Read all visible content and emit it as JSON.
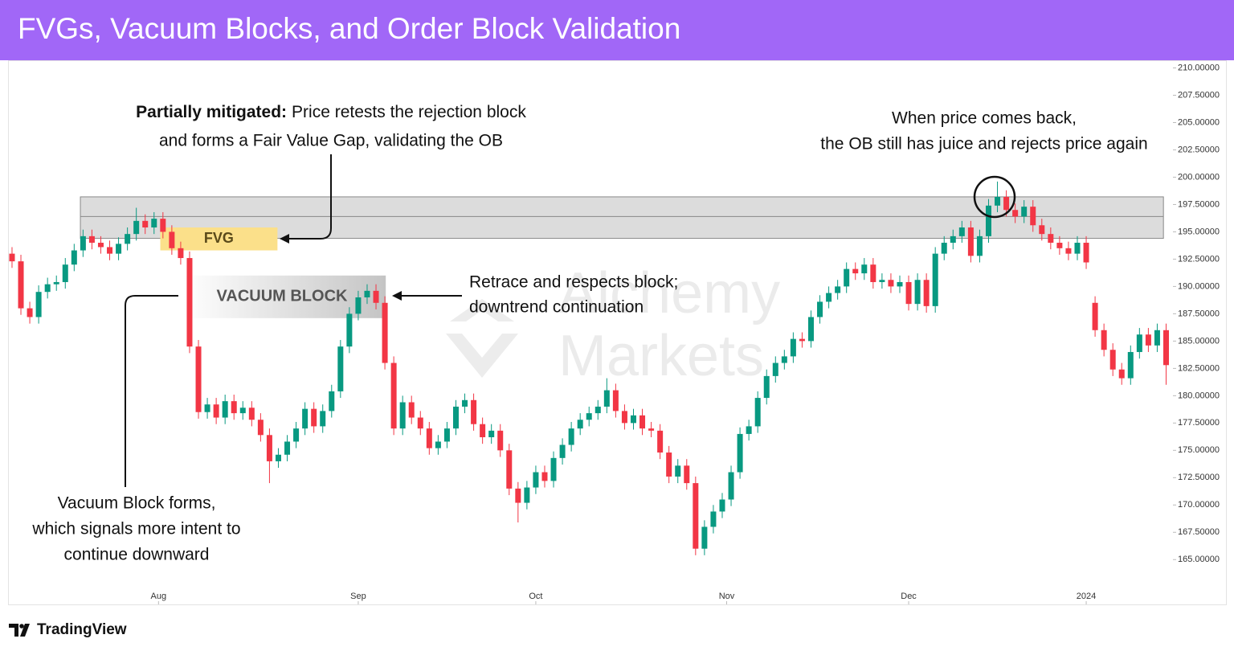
{
  "header": {
    "title": "FVGs, Vacuum Blocks, and Order Block Validation"
  },
  "chart_data": {
    "type": "candlestick",
    "open": [
      193.0,
      192.3,
      188.0,
      187.2,
      189.5,
      190.2,
      190.4,
      192.0,
      193.3,
      194.6,
      194.0,
      193.6,
      193.0,
      193.9,
      194.8,
      196.0,
      195.4,
      196.2,
      195.0,
      193.5,
      192.6,
      184.5,
      178.5,
      179.2,
      178.0,
      179.5,
      178.4,
      178.9,
      177.8,
      176.4,
      174.0,
      174.6,
      175.8,
      177.0,
      178.8,
      177.2,
      178.6,
      180.4,
      184.5,
      187.5,
      189.0,
      189.6,
      188.5,
      183.0,
      177.0,
      179.4,
      178.0,
      177.0,
      175.2,
      175.8,
      177.0,
      179.0,
      179.6,
      177.4,
      176.2,
      176.8,
      175.0,
      171.5,
      170.2,
      171.6,
      173.0,
      172.2,
      174.3,
      175.5,
      177.0,
      177.8,
      178.4,
      179.0,
      180.5,
      178.6,
      177.5,
      178.2,
      177.0,
      176.8,
      174.8,
      172.6,
      173.6,
      172.0,
      166.0,
      168.0,
      169.4,
      170.5,
      173.0,
      176.5,
      177.2,
      179.8,
      181.8,
      183.0,
      183.6,
      185.2,
      185.0,
      187.2,
      188.6,
      189.4,
      190.0,
      191.6,
      191.2,
      192.0,
      190.4,
      190.6,
      190.0,
      190.4,
      188.4,
      190.6,
      188.2,
      193.0,
      194.0,
      194.6,
      195.4,
      192.8,
      194.6,
      197.4,
      198.2,
      197.0,
      196.4,
      197.3,
      195.6,
      194.8,
      194.0,
      193.5,
      193.0,
      194.0,
      188.5,
      186.0,
      184.2,
      182.4,
      181.6,
      184.0,
      185.6,
      184.6,
      186.0
    ],
    "high": [
      193.6,
      192.9,
      188.6,
      190.1,
      190.8,
      191.0,
      192.6,
      193.9,
      195.2,
      195.2,
      194.6,
      194.2,
      194.5,
      195.4,
      197.2,
      196.6,
      196.8,
      196.8,
      195.6,
      194.1,
      193.2,
      185.1,
      179.8,
      179.8,
      180.1,
      180.1,
      179.5,
      179.5,
      178.4,
      177.0,
      175.2,
      176.4,
      177.6,
      179.4,
      179.4,
      179.2,
      181.0,
      185.1,
      188.1,
      189.6,
      190.2,
      190.2,
      189.1,
      183.6,
      180.0,
      180.0,
      178.6,
      177.6,
      176.4,
      177.6,
      179.6,
      180.2,
      180.2,
      178.0,
      177.4,
      177.4,
      175.6,
      172.1,
      172.2,
      173.6,
      173.6,
      174.9,
      176.1,
      177.6,
      178.4,
      179.0,
      179.6,
      181.6,
      181.1,
      179.2,
      178.8,
      178.8,
      177.6,
      177.4,
      175.4,
      174.2,
      174.2,
      172.6,
      168.6,
      170.0,
      171.1,
      173.6,
      177.1,
      177.8,
      180.4,
      182.4,
      183.6,
      184.2,
      185.8,
      185.8,
      187.8,
      189.2,
      190.0,
      190.6,
      192.2,
      192.2,
      192.6,
      192.6,
      191.2,
      191.2,
      191.0,
      191.0,
      191.2,
      191.2,
      193.6,
      194.6,
      195.2,
      196.0,
      196.0,
      195.2,
      198.0,
      199.6,
      198.8,
      197.6,
      197.9,
      197.9,
      196.2,
      195.4,
      194.6,
      194.1,
      194.6,
      194.6,
      189.1,
      186.6,
      184.8,
      183.0,
      184.6,
      186.2,
      186.2,
      186.6,
      186.6
    ],
    "low": [
      191.7,
      187.4,
      186.6,
      186.6,
      188.9,
      189.6,
      189.8,
      191.4,
      192.7,
      193.4,
      193.0,
      192.4,
      192.4,
      193.3,
      194.2,
      194.8,
      194.8,
      194.4,
      192.9,
      192.0,
      183.9,
      177.9,
      177.9,
      177.4,
      177.4,
      177.8,
      177.8,
      177.2,
      175.8,
      172.0,
      173.4,
      174.0,
      175.2,
      176.4,
      176.6,
      176.6,
      178.0,
      179.8,
      183.9,
      186.9,
      188.4,
      187.9,
      182.4,
      176.4,
      176.4,
      177.4,
      176.4,
      174.6,
      174.6,
      175.2,
      176.4,
      178.4,
      176.8,
      175.6,
      175.6,
      174.4,
      170.9,
      168.4,
      169.6,
      171.0,
      171.6,
      171.6,
      173.7,
      174.9,
      176.4,
      177.2,
      177.8,
      178.4,
      178.0,
      176.9,
      176.9,
      176.4,
      176.2,
      174.2,
      172.0,
      172.0,
      171.4,
      165.4,
      165.4,
      167.4,
      168.8,
      169.9,
      172.4,
      175.9,
      176.6,
      179.2,
      181.2,
      182.4,
      183.0,
      184.4,
      184.4,
      186.6,
      188.0,
      188.8,
      189.4,
      190.6,
      190.6,
      189.8,
      189.8,
      189.4,
      189.4,
      187.8,
      187.8,
      187.6,
      187.6,
      192.4,
      193.4,
      194.0,
      192.2,
      192.2,
      194.0,
      196.8,
      196.4,
      195.8,
      195.8,
      195.0,
      194.2,
      193.4,
      192.9,
      192.4,
      192.4,
      191.6,
      185.4,
      183.6,
      181.8,
      181.0,
      181.0,
      183.4,
      184.0,
      184.0,
      181.0
    ],
    "close": [
      192.3,
      188.0,
      187.2,
      189.5,
      190.2,
      190.4,
      192.0,
      193.3,
      194.6,
      194.0,
      193.6,
      193.0,
      193.9,
      194.8,
      196.0,
      195.4,
      196.2,
      195.0,
      193.5,
      192.6,
      184.5,
      178.5,
      179.2,
      178.0,
      179.5,
      178.4,
      178.9,
      177.8,
      176.4,
      174.0,
      174.6,
      175.8,
      177.0,
      178.8,
      177.2,
      178.6,
      180.4,
      184.5,
      187.5,
      189.0,
      189.6,
      188.5,
      183.0,
      177.0,
      179.4,
      178.0,
      177.0,
      175.2,
      175.8,
      177.0,
      179.0,
      179.6,
      177.4,
      176.2,
      176.8,
      175.0,
      171.5,
      170.2,
      171.6,
      173.0,
      172.2,
      174.3,
      175.5,
      177.0,
      177.8,
      178.4,
      179.0,
      180.5,
      178.6,
      177.5,
      178.2,
      177.0,
      176.8,
      174.8,
      172.6,
      173.6,
      172.0,
      166.0,
      168.0,
      169.4,
      170.5,
      173.0,
      176.5,
      177.2,
      179.8,
      181.8,
      183.0,
      183.6,
      185.2,
      185.0,
      187.2,
      188.6,
      189.4,
      190.0,
      191.6,
      191.2,
      192.0,
      190.4,
      190.6,
      190.0,
      190.4,
      188.4,
      190.6,
      188.2,
      193.0,
      194.0,
      194.6,
      195.4,
      192.8,
      194.6,
      197.4,
      198.2,
      197.0,
      196.4,
      197.3,
      195.6,
      194.8,
      194.0,
      193.5,
      193.0,
      194.0,
      192.2,
      186.0,
      184.2,
      182.4,
      181.6,
      184.0,
      185.6,
      184.6,
      186.0,
      182.8
    ],
    "up_color": "#089981",
    "down_color": "#f23645",
    "xlim": [
      -0.45,
      130.77
    ],
    "ylim": [
      160.9,
      210.7
    ],
    "xticks": [
      {
        "value": 16.5,
        "label": "Aug"
      },
      {
        "value": 39,
        "label": "Sep"
      },
      {
        "value": 59,
        "label": "Oct"
      },
      {
        "value": 80.5,
        "label": "Nov"
      },
      {
        "value": 101,
        "label": "Dec"
      },
      {
        "value": 121,
        "label": "2024"
      }
    ],
    "yticks": [
      {
        "value": 165,
        "label": "165.00000"
      },
      {
        "value": 167.5,
        "label": "167.50000"
      },
      {
        "value": 170,
        "label": "170.00000"
      },
      {
        "value": 172.5,
        "label": "172.50000"
      },
      {
        "value": 175,
        "label": "175.00000"
      },
      {
        "value": 177.5,
        "label": "177.50000"
      },
      {
        "value": 180,
        "label": "180.00000"
      },
      {
        "value": 182.5,
        "label": "182.50000"
      },
      {
        "value": 185,
        "label": "185.00000"
      },
      {
        "value": 187.5,
        "label": "187.50000"
      },
      {
        "value": 190,
        "label": "190.00000"
      },
      {
        "value": 192.5,
        "label": "192.50000"
      },
      {
        "value": 195,
        "label": "195.00000"
      },
      {
        "value": 197.5,
        "label": "197.50000"
      },
      {
        "value": 200,
        "label": "200.00000"
      },
      {
        "value": 202.5,
        "label": "202.50000"
      },
      {
        "value": 205,
        "label": "205.00000"
      },
      {
        "value": 207.5,
        "label": "207.50000"
      },
      {
        "value": 210,
        "label": "210.00000"
      }
    ],
    "order_block": {
      "x0": 7.7,
      "x1": 129.7,
      "y0": 194.4,
      "y1": 198.2,
      "mid": 196.4
    },
    "fvg": {
      "label": "FVG",
      "x0": 16.7,
      "x1": 29.9,
      "y0": 193.3,
      "y1": 195.4,
      "color": "#fbe08a"
    },
    "vacuum_block": {
      "label": "VACUUM BLOCK",
      "x0": 19.3,
      "x1": 42.1,
      "y0": 187.1,
      "y1": 191.0
    },
    "annotations": [
      {
        "bold": "Partially mitigated:",
        "lines": [
          "Price retests the rejection block",
          "and forms a Fair Value Gap, validating the OB"
        ]
      },
      {
        "lines": [
          "When price comes back,",
          "the OB still has juice and rejects price again"
        ]
      },
      {
        "lines": [
          "Retrace and respects block;",
          "downtrend continuation"
        ]
      },
      {
        "lines": [
          "Vacuum Block forms,",
          "which signals more intent to",
          "continue downward"
        ]
      }
    ],
    "watermark": [
      "Alchemy",
      "Markets"
    ]
  },
  "footer": {
    "brand": "TradingView"
  }
}
